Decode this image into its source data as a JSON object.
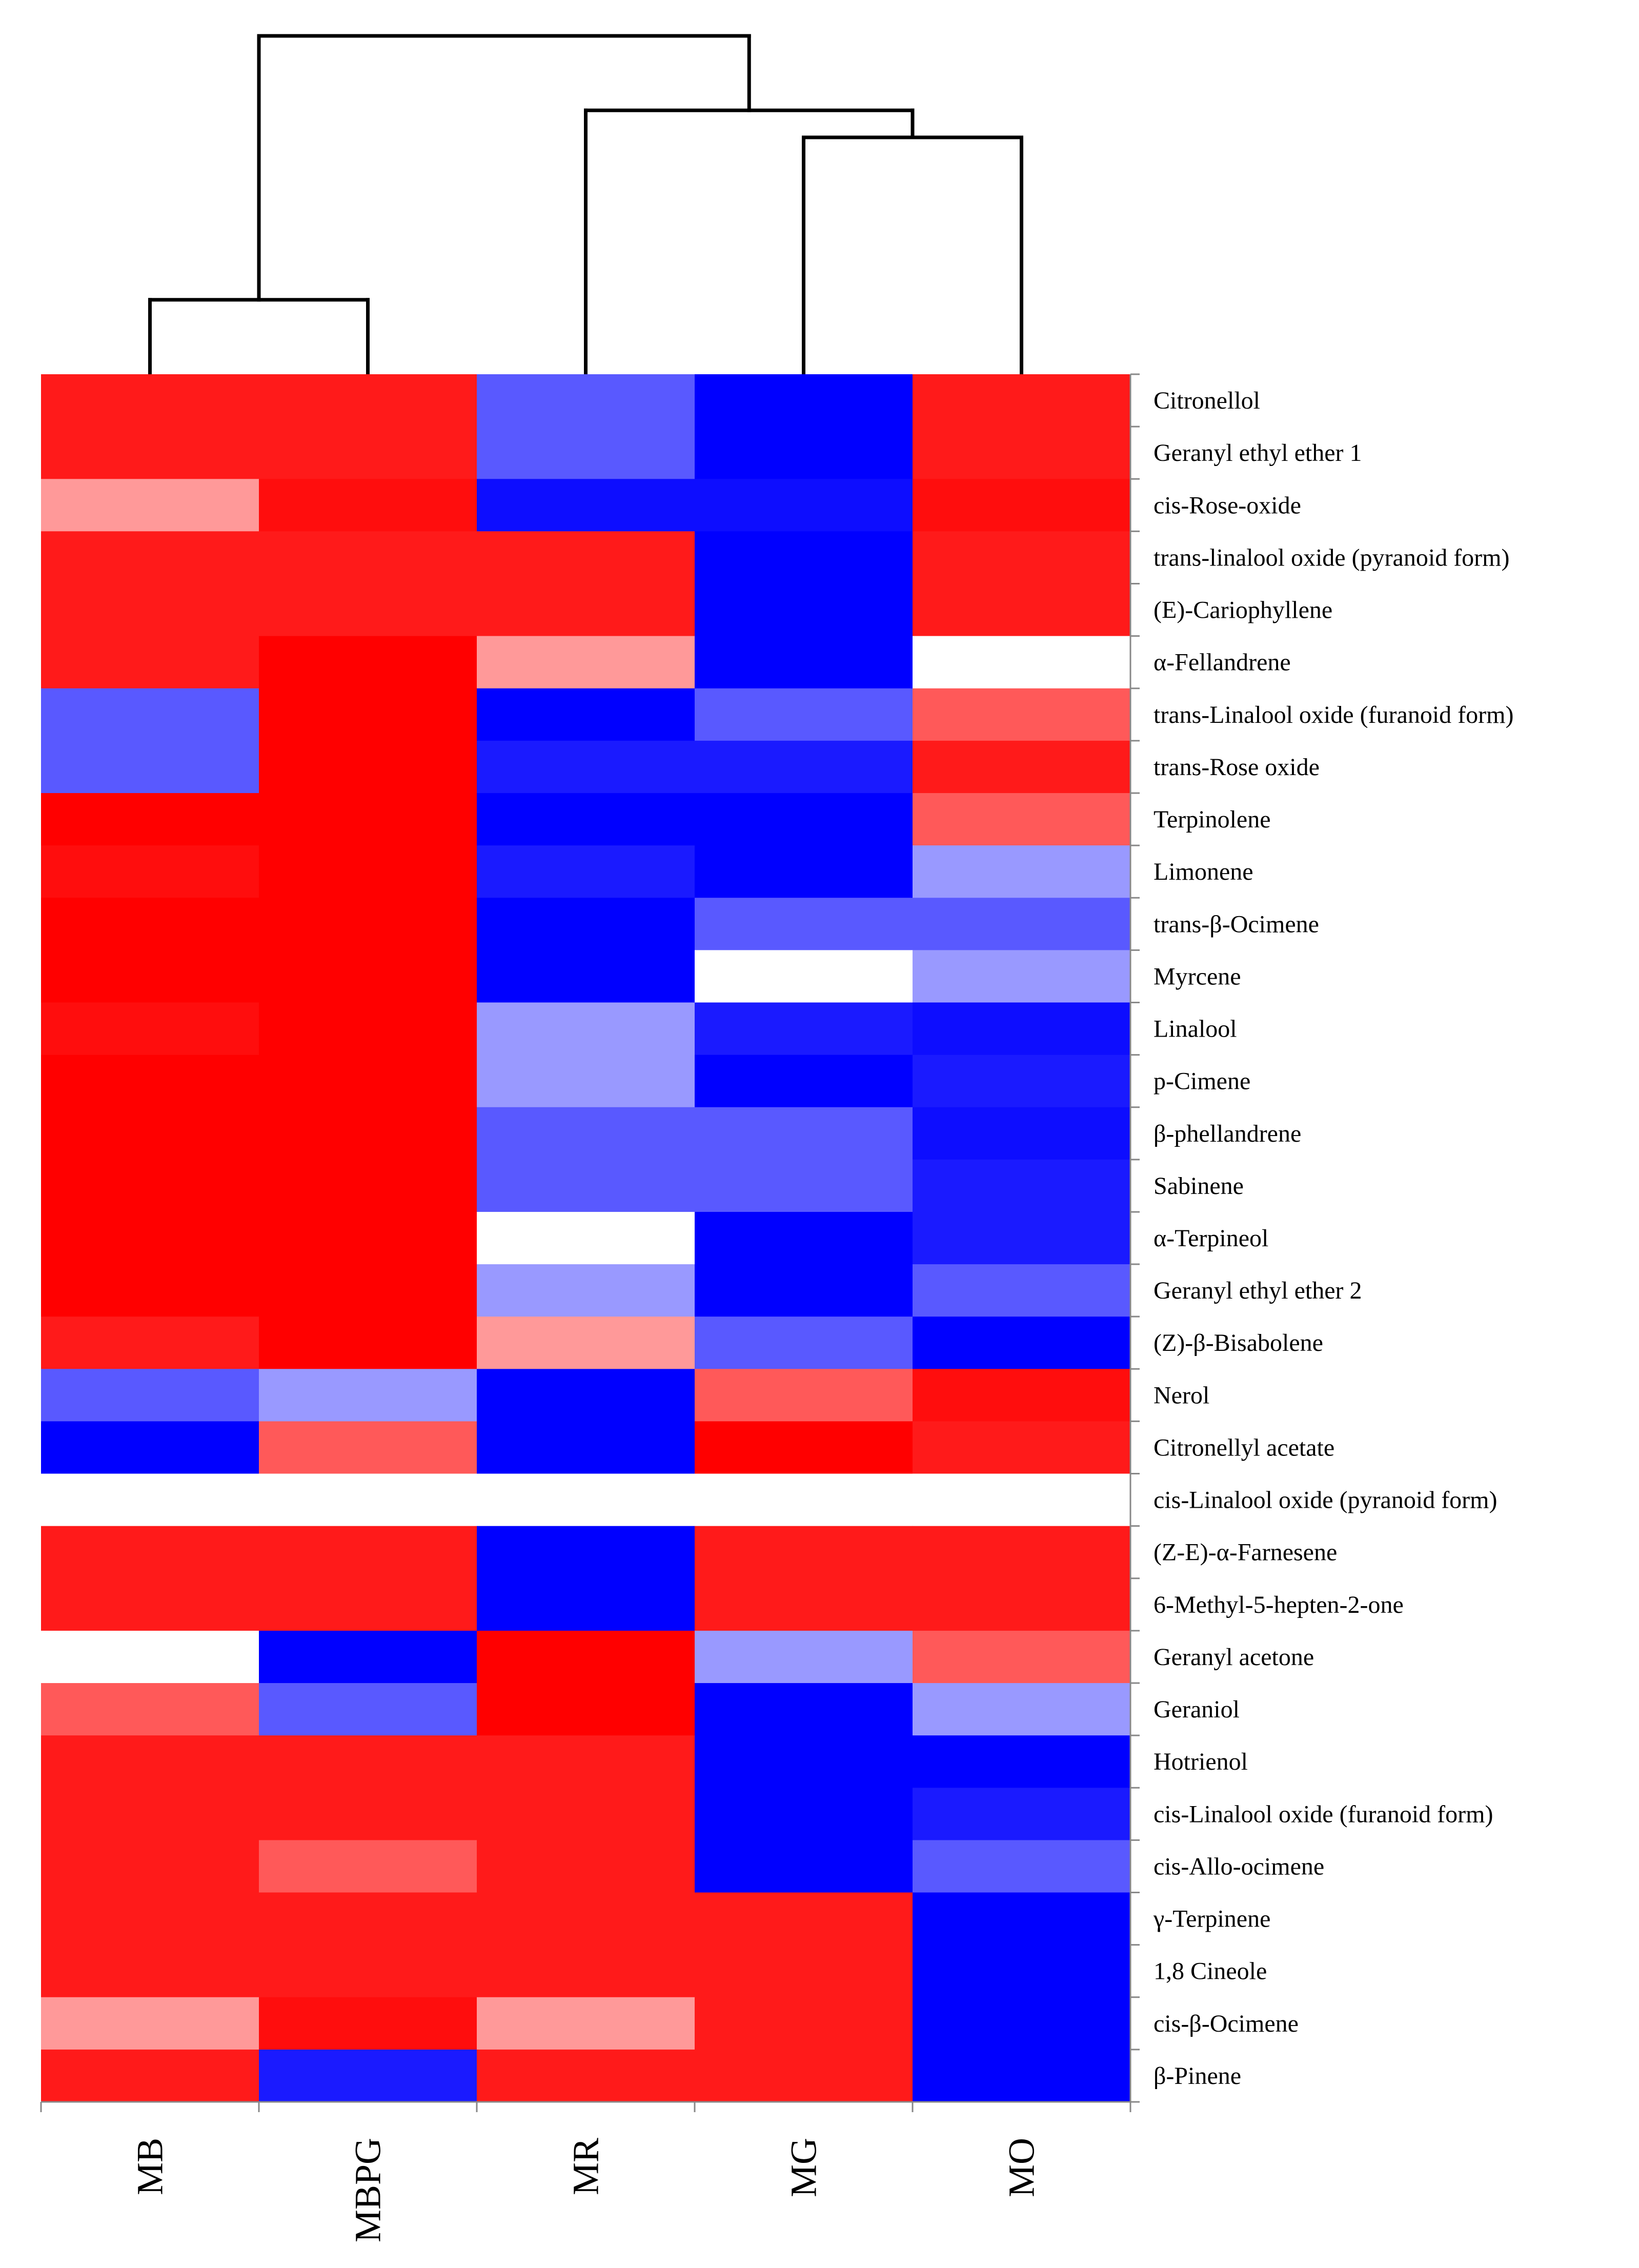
{
  "chart_data": {
    "type": "heatmap",
    "columns": [
      "MB",
      "MBPG",
      "MR",
      "MG",
      "MO"
    ],
    "column_order_note": "",
    "rows": [
      "Citronellol",
      "Geranyl ethyl ether 1",
      "cis-Rose-oxide",
      "trans-linalool oxide (pyranoid form)",
      "(E)-Cariophyllene",
      "α-Fellandrene",
      "trans-Linalool oxide (furanoid form)",
      "trans-Rose oxide",
      "Terpinolene",
      "Limonene",
      "trans-β-Ocimene",
      "Myrcene",
      "Linalool",
      "p-Cimene",
      "β-phellandrene",
      "Sabinene",
      "α-Terpineol",
      "Geranyl ethyl ether 2",
      "(Z)-β-Bisabolene",
      "Nerol",
      "Citronellyl acetate",
      "cis-Linalool oxide (pyranoid form)",
      "(Z-E)-α-Farnesene",
      "6-Methyl-5-hepten-2-one",
      "Geranyl acetone",
      "Geraniol",
      "Hotrienol",
      "cis-Linalool oxide (furanoid form)",
      "cis-Allo-ocimene",
      "γ-Terpinene",
      "1,8 Cineole",
      "cis-β-Ocimene",
      "β-Pinene"
    ],
    "values": [
      [
        0.9,
        0.9,
        -0.65,
        -1.0,
        0.9
      ],
      [
        0.9,
        0.9,
        -0.65,
        -1.0,
        0.9
      ],
      [
        0.4,
        0.95,
        -0.95,
        -0.95,
        0.95
      ],
      [
        0.9,
        0.9,
        0.9,
        -1.0,
        0.9
      ],
      [
        0.9,
        0.9,
        0.9,
        -1.0,
        0.9
      ],
      [
        0.9,
        1.0,
        0.4,
        -1.0,
        0.0
      ],
      [
        -0.65,
        1.0,
        -1.0,
        -0.65,
        0.65
      ],
      [
        -0.65,
        1.0,
        -0.9,
        -0.9,
        0.9
      ],
      [
        1.0,
        1.0,
        -1.0,
        -1.0,
        0.65
      ],
      [
        0.95,
        1.0,
        -0.9,
        -1.0,
        -0.4
      ],
      [
        1.0,
        1.0,
        -1.0,
        -0.65,
        -0.65
      ],
      [
        1.0,
        1.0,
        -1.0,
        0.0,
        -0.4
      ],
      [
        0.95,
        1.0,
        -0.4,
        -0.9,
        -0.95
      ],
      [
        1.0,
        1.0,
        -0.4,
        -1.0,
        -0.9
      ],
      [
        1.0,
        1.0,
        -0.65,
        -0.65,
        -0.95
      ],
      [
        1.0,
        1.0,
        -0.65,
        -0.65,
        -0.9
      ],
      [
        1.0,
        1.0,
        0.0,
        -1.0,
        -0.9
      ],
      [
        1.0,
        1.0,
        -0.4,
        -1.0,
        -0.65
      ],
      [
        0.9,
        1.0,
        0.4,
        -0.65,
        -1.0
      ],
      [
        -0.65,
        -0.4,
        -1.0,
        0.65,
        0.95
      ],
      [
        -1.0,
        0.65,
        -1.0,
        1.0,
        0.9
      ],
      [
        0.0,
        0.0,
        0.0,
        0.0,
        0.0
      ],
      [
        0.9,
        0.9,
        -1.0,
        0.9,
        0.9
      ],
      [
        0.9,
        0.9,
        -1.0,
        0.9,
        0.9
      ],
      [
        0.0,
        -1.0,
        1.0,
        -0.4,
        0.65
      ],
      [
        0.65,
        -0.65,
        1.0,
        -1.0,
        -0.4
      ],
      [
        0.9,
        0.9,
        0.9,
        -1.0,
        -1.0
      ],
      [
        0.9,
        0.9,
        0.9,
        -1.0,
        -0.9
      ],
      [
        0.9,
        0.65,
        0.9,
        -1.0,
        -0.65
      ],
      [
        0.9,
        0.9,
        0.9,
        0.9,
        -1.0
      ],
      [
        0.9,
        0.9,
        0.9,
        0.9,
        -1.0
      ],
      [
        0.4,
        0.95,
        0.4,
        0.9,
        -1.0
      ],
      [
        0.9,
        -0.9,
        0.9,
        0.9,
        -1.0
      ]
    ],
    "color_scale": {
      "low": "#0000ff",
      "mid": "#ffffff",
      "high": "#ff0000"
    },
    "dendrogram": {
      "orientation": "top",
      "clusters": [
        [
          "MB",
          "MBPG"
        ],
        [
          "MR",
          [
            "MG",
            "MO"
          ]
        ]
      ]
    },
    "legend": "none",
    "grid": false
  }
}
